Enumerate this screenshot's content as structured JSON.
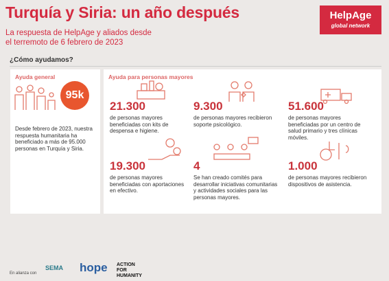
{
  "header": {
    "title": "Turquía y Siria: un año después",
    "subtitle_lines": [
      "La respuesta de HelpAge y aliados desde",
      "el terremoto de 6 febrero de 2023"
    ],
    "logo": {
      "name": "HelpAge",
      "tagline": "global network"
    }
  },
  "section_heading": "¿Cómo ayudamos?",
  "general": {
    "heading": "Ayuda general",
    "badge": "95k",
    "text": "Desde febrero de 2023, nuestra respuesta humanitaria ha beneficiado a más de 95.000 personas en Turquía y Siria."
  },
  "older": {
    "heading": "Ayuda para personas mayores",
    "stats": [
      {
        "number": "21.300",
        "text": "de personas mayores beneficiadas con kits de despensa e higiene."
      },
      {
        "number": "9.300",
        "text": "de personas mayores recibieron soporte psicológico."
      },
      {
        "number": "51.600",
        "text": "de personas mayores beneficiadas por un centro de salud primario y tres clínicas móviles."
      },
      {
        "number": "19.300",
        "text": "de personas mayores beneficiadas con aportaciones en efectivo."
      },
      {
        "number": "4",
        "text": "Se han creado comités para desarrollar iniciativas comunitarias y actividades sociales para las personas mayores."
      },
      {
        "number": "1.000",
        "text": "de personas mayores recibieron dispositivos de asistencia."
      }
    ]
  },
  "footer": {
    "label": "En alianza con",
    "partners": [
      "SEMA",
      "hope",
      "ACTION FOR HUMANITY"
    ]
  }
}
